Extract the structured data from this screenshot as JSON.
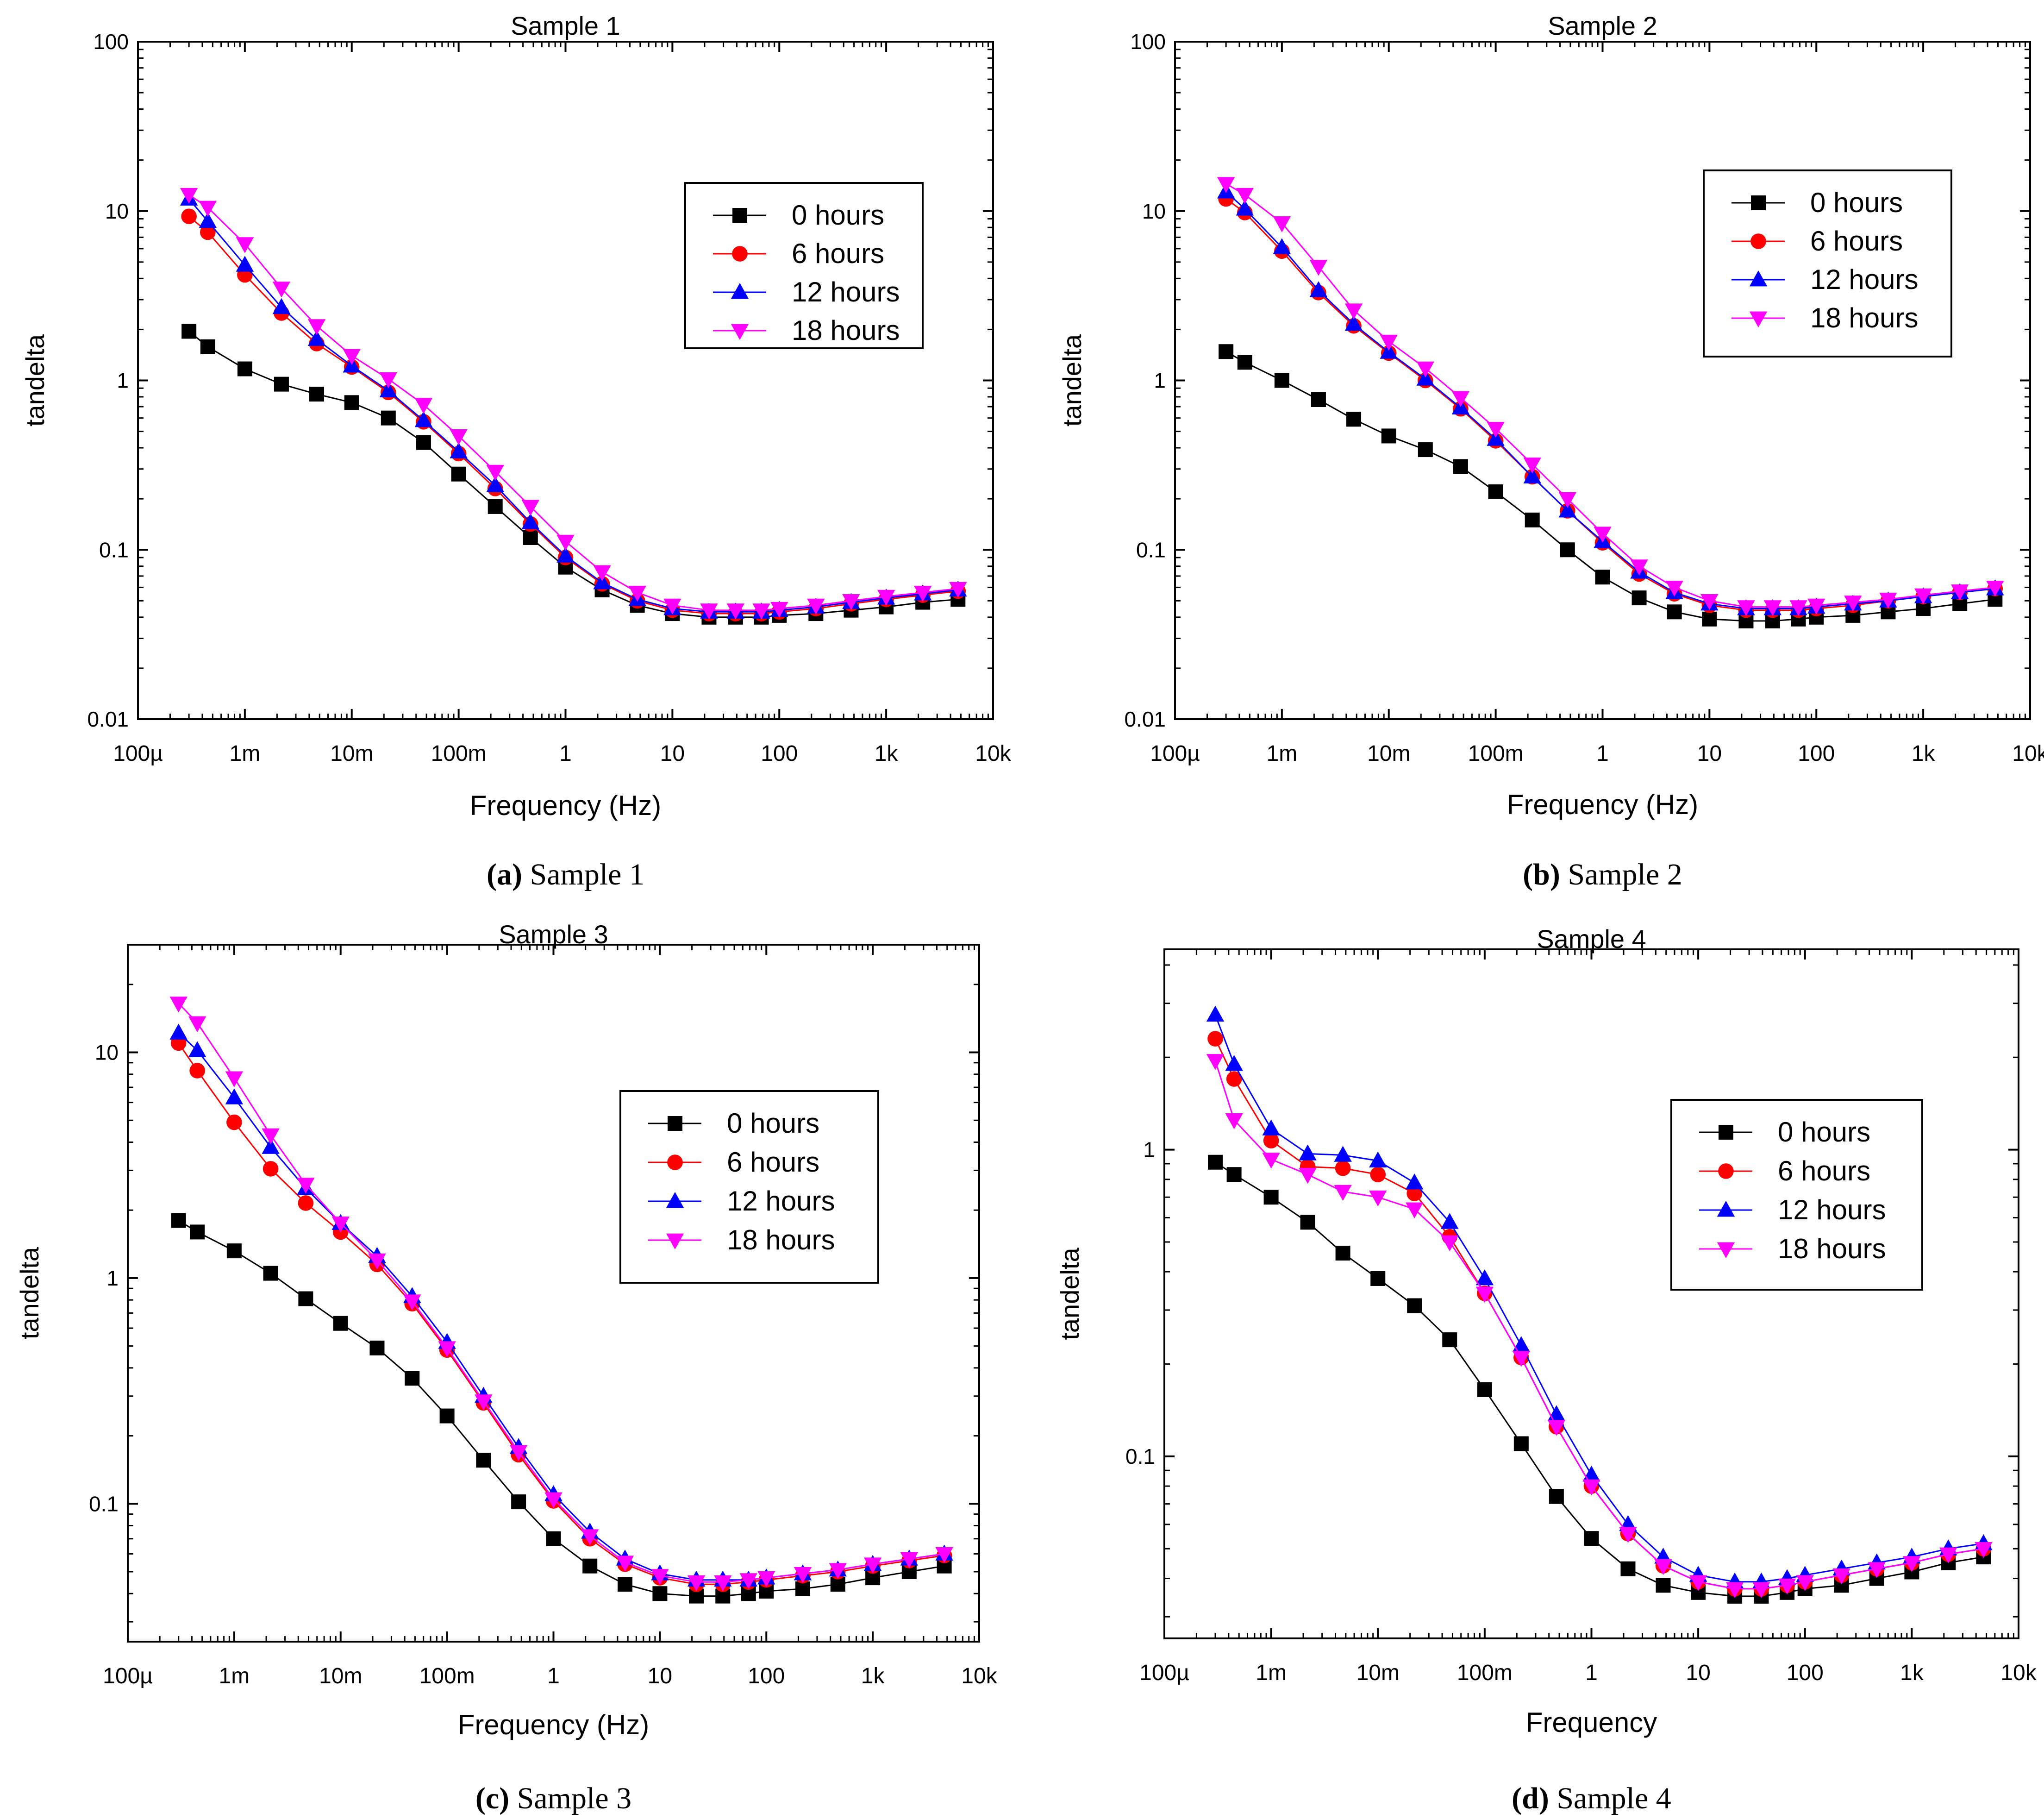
{
  "figure": {
    "captions": [
      {
        "letter": "(a)",
        "text": " Sample 1"
      },
      {
        "letter": "(b)",
        "text": " Sample 2"
      },
      {
        "letter": "(c)",
        "text": " Sample 3"
      },
      {
        "letter": "(d)",
        "text": " Sample 4"
      }
    ]
  },
  "chart_data": [
    {
      "type": "line",
      "title": "Sample 1",
      "xlabel": "Frequency (Hz)",
      "ylabel": "tandelta",
      "x_scale": "log",
      "y_scale": "log",
      "xlim": [
        0.0001,
        10000
      ],
      "ylim": [
        0.01,
        100
      ],
      "x_ticks": [
        0.0001,
        0.001,
        0.01,
        0.1,
        1,
        10,
        100,
        1000,
        10000
      ],
      "x_tick_labels": [
        "100µ",
        "1m",
        "10m",
        "100m",
        "1",
        "10",
        "100",
        "1k",
        "10k"
      ],
      "y_ticks": [
        0.01,
        0.1,
        1,
        10,
        100
      ],
      "y_tick_labels": [
        "0.01",
        "0.1",
        "1",
        "10",
        "100"
      ],
      "legend_position": "top-right",
      "x": [
        0.0003,
        0.00045,
        0.001,
        0.0022,
        0.0047,
        0.01,
        0.022,
        0.047,
        0.1,
        0.22,
        0.47,
        1,
        2.2,
        4.7,
        10,
        22,
        39,
        68,
        100,
        220,
        470,
        1000,
        2200,
        4700
      ],
      "series": [
        {
          "name": "0 hours",
          "color": "#000000",
          "marker": "square",
          "values": [
            1.95,
            1.58,
            1.17,
            0.95,
            0.83,
            0.74,
            0.6,
            0.43,
            0.28,
            0.18,
            0.118,
            0.079,
            0.058,
            0.047,
            0.042,
            0.04,
            0.04,
            0.04,
            0.041,
            0.042,
            0.044,
            0.046,
            0.049,
            0.051
          ]
        },
        {
          "name": "6 hours",
          "color": "#ff0000",
          "marker": "circle",
          "values": [
            9.3,
            7.5,
            4.2,
            2.5,
            1.65,
            1.2,
            0.85,
            0.57,
            0.37,
            0.23,
            0.142,
            0.09,
            0.063,
            0.05,
            0.044,
            0.042,
            0.042,
            0.042,
            0.043,
            0.045,
            0.048,
            0.051,
            0.054,
            0.057
          ]
        },
        {
          "name": "12 hours",
          "color": "#0000ff",
          "marker": "triangle-up",
          "values": [
            11.8,
            8.7,
            4.8,
            2.7,
            1.75,
            1.22,
            0.87,
            0.58,
            0.38,
            0.24,
            0.145,
            0.092,
            0.064,
            0.051,
            0.045,
            0.043,
            0.043,
            0.043,
            0.044,
            0.046,
            0.049,
            0.052,
            0.055,
            0.058
          ]
        },
        {
          "name": "18 hours",
          "color": "#ff00ff",
          "marker": "triangle-down",
          "values": [
            12.5,
            10.5,
            6.4,
            3.5,
            2.1,
            1.4,
            1.02,
            0.72,
            0.47,
            0.29,
            0.18,
            0.112,
            0.074,
            0.056,
            0.047,
            0.044,
            0.044,
            0.044,
            0.045,
            0.047,
            0.05,
            0.053,
            0.056,
            0.059
          ]
        }
      ]
    },
    {
      "type": "line",
      "title": "Sample 2",
      "xlabel": "Frequency (Hz)",
      "ylabel": "tandelta",
      "x_scale": "log",
      "y_scale": "log",
      "xlim": [
        0.0001,
        10000
      ],
      "ylim": [
        0.01,
        100
      ],
      "x_ticks": [
        0.0001,
        0.001,
        0.01,
        0.1,
        1,
        10,
        100,
        1000,
        10000
      ],
      "x_tick_labels": [
        "100µ",
        "1m",
        "10m",
        "100m",
        "1",
        "10",
        "100",
        "1k",
        "10k"
      ],
      "y_ticks": [
        0.01,
        0.1,
        1,
        10,
        100
      ],
      "y_tick_labels": [
        "0.01",
        "0.1",
        "1",
        "10",
        "100"
      ],
      "legend_position": "top-right",
      "x": [
        0.0003,
        0.00045,
        0.001,
        0.0022,
        0.0047,
        0.01,
        0.022,
        0.047,
        0.1,
        0.22,
        0.47,
        1,
        2.2,
        4.7,
        10,
        22,
        39,
        68,
        100,
        220,
        470,
        1000,
        2200,
        4700
      ],
      "series": [
        {
          "name": "0 hours",
          "color": "#000000",
          "marker": "square",
          "values": [
            1.48,
            1.28,
            1.0,
            0.77,
            0.59,
            0.47,
            0.39,
            0.31,
            0.22,
            0.15,
            0.1,
            0.069,
            0.052,
            0.043,
            0.039,
            0.038,
            0.038,
            0.039,
            0.04,
            0.041,
            0.043,
            0.045,
            0.048,
            0.051
          ]
        },
        {
          "name": "6 hours",
          "color": "#ff0000",
          "marker": "circle",
          "values": [
            11.8,
            9.8,
            5.8,
            3.3,
            2.1,
            1.45,
            1.0,
            0.68,
            0.44,
            0.27,
            0.17,
            0.11,
            0.072,
            0.055,
            0.047,
            0.044,
            0.044,
            0.044,
            0.045,
            0.047,
            0.05,
            0.053,
            0.056,
            0.059
          ]
        },
        {
          "name": "12 hours",
          "color": "#0000ff",
          "marker": "triangle-up",
          "values": [
            13.0,
            10.3,
            6.1,
            3.4,
            2.15,
            1.47,
            1.02,
            0.69,
            0.45,
            0.27,
            0.17,
            0.112,
            0.074,
            0.056,
            0.048,
            0.045,
            0.045,
            0.045,
            0.046,
            0.048,
            0.05,
            0.053,
            0.056,
            0.059
          ]
        },
        {
          "name": "18 hours",
          "color": "#ff00ff",
          "marker": "triangle-down",
          "values": [
            14.5,
            12.5,
            8.5,
            4.7,
            2.6,
            1.7,
            1.18,
            0.79,
            0.52,
            0.32,
            0.2,
            0.125,
            0.08,
            0.06,
            0.05,
            0.046,
            0.046,
            0.046,
            0.047,
            0.049,
            0.051,
            0.054,
            0.057,
            0.06
          ]
        }
      ]
    },
    {
      "type": "line",
      "title": "Sample 3",
      "xlabel": "Frequency (Hz)",
      "ylabel": "tandelta",
      "x_scale": "log",
      "y_scale": "log",
      "xlim": [
        0.0001,
        10000
      ],
      "ylim": [
        0.0245,
        30
      ],
      "x_ticks": [
        0.0001,
        0.001,
        0.01,
        0.1,
        1,
        10,
        100,
        1000,
        10000
      ],
      "x_tick_labels": [
        "100µ",
        "1m",
        "10m",
        "100m",
        "1",
        "10",
        "100",
        "1k",
        "10k"
      ],
      "y_ticks": [
        0.1,
        1,
        10
      ],
      "y_tick_labels": [
        "0.1",
        "1",
        "10"
      ],
      "legend_position": "right",
      "x": [
        0.0003,
        0.00045,
        0.001,
        0.0022,
        0.0047,
        0.01,
        0.022,
        0.047,
        0.1,
        0.22,
        0.47,
        1,
        2.2,
        4.7,
        10,
        22,
        39,
        68,
        100,
        220,
        470,
        1000,
        2200,
        4700
      ],
      "series": [
        {
          "name": "0 hours",
          "color": "#000000",
          "marker": "square",
          "values": [
            1.8,
            1.6,
            1.32,
            1.05,
            0.81,
            0.63,
            0.49,
            0.36,
            0.245,
            0.156,
            0.102,
            0.07,
            0.053,
            0.044,
            0.04,
            0.039,
            0.039,
            0.04,
            0.041,
            0.042,
            0.044,
            0.047,
            0.05,
            0.053
          ]
        },
        {
          "name": "6 hours",
          "color": "#ff0000",
          "marker": "circle",
          "values": [
            11.0,
            8.3,
            4.9,
            3.05,
            2.15,
            1.6,
            1.15,
            0.77,
            0.48,
            0.28,
            0.165,
            0.103,
            0.07,
            0.054,
            0.047,
            0.044,
            0.044,
            0.045,
            0.046,
            0.048,
            0.05,
            0.053,
            0.056,
            0.059
          ]
        },
        {
          "name": "12 hours",
          "color": "#0000ff",
          "marker": "triangle-up",
          "values": [
            12.2,
            10.2,
            6.3,
            3.8,
            2.5,
            1.75,
            1.25,
            0.83,
            0.52,
            0.3,
            0.178,
            0.11,
            0.075,
            0.057,
            0.049,
            0.046,
            0.046,
            0.046,
            0.047,
            0.049,
            0.051,
            0.054,
            0.057,
            0.06
          ]
        },
        {
          "name": "18 hours",
          "color": "#ff00ff",
          "marker": "triangle-down",
          "values": [
            16.5,
            13.5,
            7.7,
            4.3,
            2.6,
            1.75,
            1.2,
            0.79,
            0.49,
            0.285,
            0.17,
            0.105,
            0.072,
            0.055,
            0.048,
            0.045,
            0.045,
            0.046,
            0.047,
            0.049,
            0.051,
            0.054,
            0.057,
            0.06
          ]
        }
      ]
    },
    {
      "type": "line",
      "title": "Sample 4",
      "xlabel": "Frequency",
      "ylabel": "tandelta",
      "x_scale": "log",
      "y_scale": "log",
      "xlim": [
        0.0001,
        10000
      ],
      "ylim": [
        0.0255,
        4.5
      ],
      "x_ticks": [
        0.0001,
        0.001,
        0.01,
        0.1,
        1,
        10,
        100,
        1000,
        10000
      ],
      "x_tick_labels": [
        "100µ",
        "1m",
        "10m",
        "100m",
        "1",
        "10",
        "100",
        "1k",
        "10k"
      ],
      "y_ticks": [
        0.1,
        1
      ],
      "y_tick_labels": [
        "0.1",
        "1"
      ],
      "legend_position": "right",
      "x": [
        0.0003,
        0.00045,
        0.001,
        0.0022,
        0.0047,
        0.01,
        0.022,
        0.047,
        0.1,
        0.22,
        0.47,
        1,
        2.2,
        4.7,
        10,
        22,
        39,
        68,
        100,
        220,
        470,
        1000,
        2200,
        4700
      ],
      "series": [
        {
          "name": "0 hours",
          "color": "#000000",
          "marker": "square",
          "values": [
            0.91,
            0.83,
            0.7,
            0.58,
            0.46,
            0.38,
            0.31,
            0.24,
            0.165,
            0.11,
            0.074,
            0.054,
            0.043,
            0.038,
            0.036,
            0.035,
            0.035,
            0.036,
            0.037,
            0.038,
            0.04,
            0.042,
            0.045,
            0.047
          ]
        },
        {
          "name": "6 hours",
          "color": "#ff0000",
          "marker": "circle",
          "values": [
            2.3,
            1.7,
            1.07,
            0.88,
            0.87,
            0.83,
            0.72,
            0.52,
            0.34,
            0.21,
            0.125,
            0.08,
            0.056,
            0.044,
            0.039,
            0.037,
            0.037,
            0.038,
            0.039,
            0.041,
            0.043,
            0.045,
            0.048,
            0.05
          ]
        },
        {
          "name": "12 hours",
          "color": "#0000ff",
          "marker": "triangle-up",
          "values": [
            2.75,
            1.9,
            1.17,
            0.97,
            0.96,
            0.92,
            0.78,
            0.58,
            0.38,
            0.23,
            0.137,
            0.087,
            0.06,
            0.047,
            0.041,
            0.039,
            0.039,
            0.04,
            0.041,
            0.043,
            0.045,
            0.047,
            0.05,
            0.052
          ]
        },
        {
          "name": "18 hours",
          "color": "#ff00ff",
          "marker": "triangle-down",
          "values": [
            1.95,
            1.25,
            0.93,
            0.83,
            0.73,
            0.7,
            0.64,
            0.5,
            0.34,
            0.21,
            0.125,
            0.08,
            0.056,
            0.044,
            0.039,
            0.037,
            0.037,
            0.038,
            0.039,
            0.041,
            0.043,
            0.045,
            0.048,
            0.05
          ]
        }
      ]
    }
  ]
}
